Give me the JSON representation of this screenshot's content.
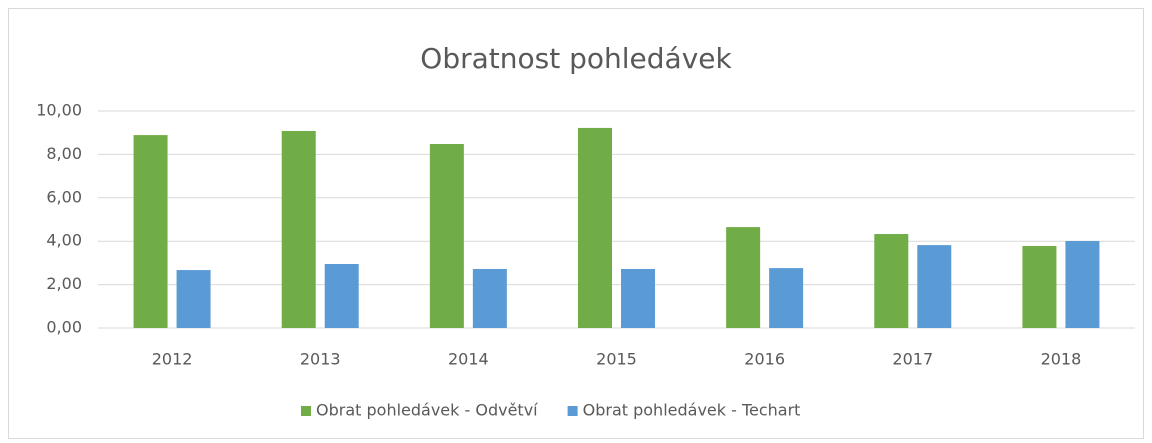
{
  "chart_data": {
    "type": "bar",
    "title": "Obratnost pohledávek",
    "categories": [
      "2012",
      "2013",
      "2014",
      "2015",
      "2016",
      "2017",
      "2018"
    ],
    "series": [
      {
        "name": "Obrat pohledávek - Odvětví",
        "color": "#70ad47",
        "values": [
          8.89,
          9.08,
          8.48,
          9.22,
          4.65,
          4.33,
          3.78
        ]
      },
      {
        "name": "Obrat pohledávek - Techart",
        "color": "#5b9bd5",
        "values": [
          2.67,
          2.95,
          2.72,
          2.72,
          2.76,
          3.82,
          4.01
        ]
      }
    ],
    "ylim": [
      0,
      10
    ],
    "yticks": [
      {
        "value": 0,
        "label": "0,00"
      },
      {
        "value": 2,
        "label": "2,00"
      },
      {
        "value": 4,
        "label": "4,00"
      },
      {
        "value": 6,
        "label": "6,00"
      },
      {
        "value": 8,
        "label": "8,00"
      },
      {
        "value": 10,
        "label": "10,00"
      }
    ],
    "grid": true,
    "legend": "bottom"
  }
}
